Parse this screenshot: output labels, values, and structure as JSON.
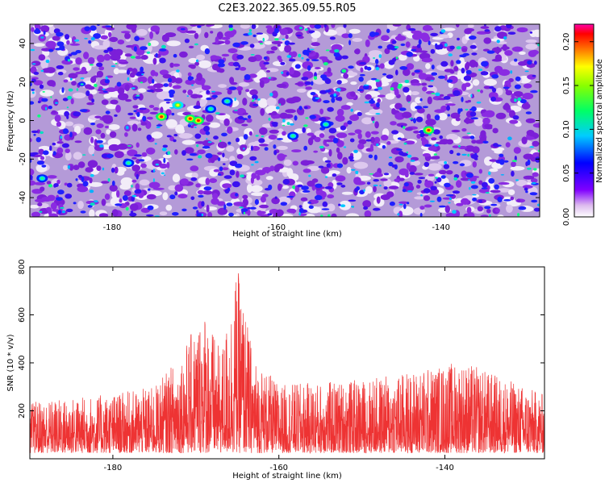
{
  "title": "C2E3.2022.365.09.55.R05",
  "chart_data": [
    {
      "type": "heatmap",
      "xlabel": "Height of straight line (km)",
      "ylabel": "Frequency (Hz)",
      "xlim": [
        -190,
        -128
      ],
      "ylim": [
        -50,
        50
      ],
      "x_ticks": [
        -180,
        -160,
        -140
      ],
      "y_ticks": [
        -40,
        -20,
        0,
        20,
        40
      ],
      "colorbar": {
        "label": "Normalized spectral amplitude",
        "range": [
          0.0,
          0.22
        ],
        "ticks": [
          "0.00",
          "0.05",
          "0.10",
          "0.15",
          "0.20"
        ],
        "tick_values": [
          0.0,
          0.05,
          0.1,
          0.15,
          0.2
        ],
        "colormap": "rainbow"
      },
      "hotspots": [
        {
          "x": -174,
          "y": 2,
          "value": 0.2
        },
        {
          "x": -170.5,
          "y": 1,
          "value": 0.2
        },
        {
          "x": -169.5,
          "y": 0,
          "value": 0.2
        },
        {
          "x": -141.5,
          "y": -5,
          "value": 0.2
        },
        {
          "x": -172,
          "y": 8,
          "value": 0.14
        },
        {
          "x": -168,
          "y": 6,
          "value": 0.12
        },
        {
          "x": -166,
          "y": 10,
          "value": 0.12
        },
        {
          "x": -188.5,
          "y": -30,
          "value": 0.1
        },
        {
          "x": -178,
          "y": -22,
          "value": 0.1
        },
        {
          "x": -158,
          "y": -8,
          "value": 0.12
        },
        {
          "x": -154,
          "y": -2,
          "value": 0.1
        }
      ]
    },
    {
      "type": "line",
      "xlabel": "Height of straight line (km)",
      "ylabel": "SNR (10 * v/v)",
      "xlim": [
        -190,
        -128
      ],
      "ylim": [
        0,
        800
      ],
      "x_ticks": [
        -180,
        -160,
        -140
      ],
      "y_ticks": [
        200,
        400,
        600,
        800
      ],
      "color": "#ee3333",
      "profile_points": [
        {
          "x": -190,
          "envelope": 240
        },
        {
          "x": -180,
          "envelope": 270
        },
        {
          "x": -175,
          "envelope": 300
        },
        {
          "x": -172,
          "envelope": 430
        },
        {
          "x": -170,
          "envelope": 560
        },
        {
          "x": -169,
          "envelope": 640
        },
        {
          "x": -167,
          "envelope": 440
        },
        {
          "x": -165,
          "envelope": 800
        },
        {
          "x": -163,
          "envelope": 420
        },
        {
          "x": -160,
          "envelope": 310
        },
        {
          "x": -150,
          "envelope": 330
        },
        {
          "x": -145,
          "envelope": 360
        },
        {
          "x": -138,
          "envelope": 410
        },
        {
          "x": -128,
          "envelope": 270
        }
      ],
      "baseline": 120
    }
  ]
}
